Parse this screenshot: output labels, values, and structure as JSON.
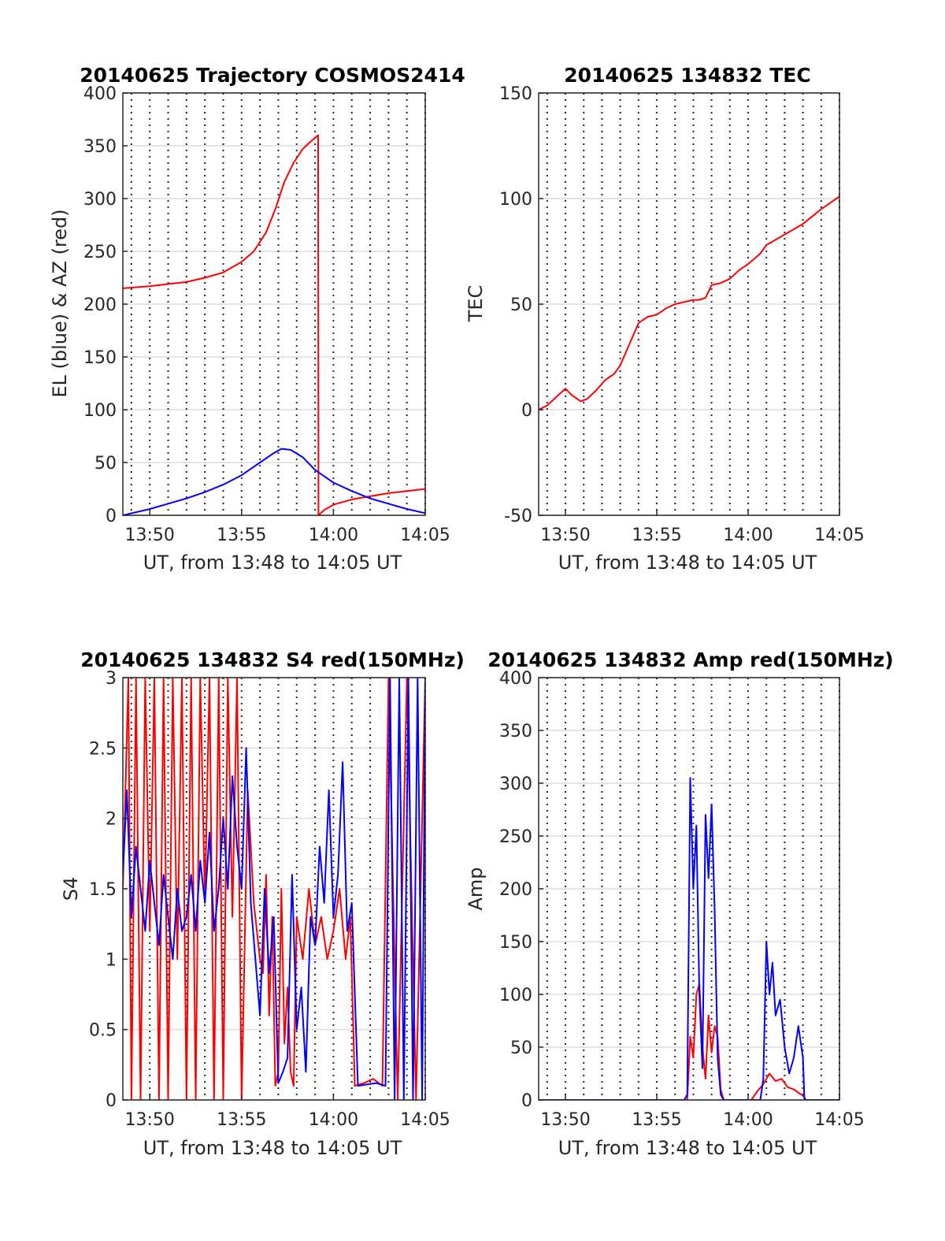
{
  "colors": {
    "red_series": "#ff0000",
    "blue_series": "#0000ff",
    "axes": "#262626",
    "hgrid": "#dcdcdc",
    "vgrid": "#262626",
    "background": "#ffffff"
  },
  "chart_data": [
    {
      "type": "line",
      "title": "20140625 Trajectory COSMOS2414",
      "xlabel": "UT, from 13:48 to 14:05 UT",
      "ylabel": "EL (blue) & AZ (red)",
      "xlim": [
        "13:48:32",
        "14:05:00"
      ],
      "ylim": [
        0,
        400
      ],
      "xticks": [
        "13:50",
        "13:55",
        "14:00",
        "14:05"
      ],
      "yticks": [
        "0",
        "50",
        "100",
        "150",
        "200",
        "250",
        "300",
        "350",
        "400"
      ],
      "grid": "horizontal solid, vertical dotted each minute",
      "series": [
        {
          "color": "red",
          "label": "AZ",
          "x": [
            "13:48:32",
            "13:50:00",
            "13:51:00",
            "13:52:00",
            "13:53:00",
            "13:54:00",
            "13:55:00",
            "13:55:40",
            "13:56:20",
            "13:56:50",
            "13:57:20",
            "13:57:50",
            "13:58:20",
            "13:58:50",
            "13:59:10",
            "13:59:11",
            "13:59:30",
            "14:00:00",
            "14:01:00",
            "14:02:00",
            "14:03:00",
            "14:04:00",
            "14:05:00"
          ],
          "y": [
            215,
            217,
            219,
            221,
            225,
            230,
            240,
            250,
            268,
            290,
            316,
            334,
            347,
            355,
            360,
            0,
            5,
            10,
            15,
            18,
            21,
            23,
            25
          ]
        },
        {
          "color": "blue",
          "label": "EL",
          "x": [
            "13:48:32",
            "13:50:00",
            "13:51:00",
            "13:52:00",
            "13:53:00",
            "13:54:00",
            "13:55:00",
            "13:56:00",
            "13:56:40",
            "13:57:10",
            "13:57:40",
            "13:58:20",
            "13:59:00",
            "14:00:00",
            "14:01:00",
            "14:02:00",
            "14:03:00",
            "14:04:00",
            "14:05:00"
          ],
          "y": [
            0,
            6,
            11,
            16,
            22,
            29,
            38,
            50,
            58,
            63,
            62,
            55,
            43,
            31,
            23,
            16,
            11,
            6,
            2
          ]
        }
      ]
    },
    {
      "type": "line",
      "title": "20140625 134832 TEC",
      "xlabel": "UT, from 13:48 to 14:05 UT",
      "ylabel": "TEC",
      "xlim": [
        "13:48:32",
        "14:05:00"
      ],
      "ylim": [
        -50,
        150
      ],
      "xticks": [
        "13:50",
        "13:55",
        "14:00",
        "14:05"
      ],
      "yticks": [
        "-50",
        "0",
        "50",
        "100",
        "150"
      ],
      "grid": "horizontal solid, vertical dotted each minute",
      "series": [
        {
          "color": "red",
          "label": "TEC",
          "x": [
            "13:48:32",
            "13:49:00",
            "13:49:30",
            "13:50:00",
            "13:50:20",
            "13:50:50",
            "13:51:10",
            "13:51:40",
            "13:52:10",
            "13:52:40",
            "13:53:00",
            "13:53:30",
            "13:54:00",
            "13:54:30",
            "13:55:00",
            "13:55:30",
            "13:56:00",
            "13:56:30",
            "13:57:00",
            "13:57:20",
            "13:57:40",
            "13:58:00",
            "13:58:30",
            "13:59:00",
            "13:59:30",
            "14:00:00",
            "14:00:40",
            "14:01:00",
            "14:02:00",
            "14:03:00",
            "14:04:00",
            "14:05:00"
          ],
          "y": [
            0,
            2,
            6,
            10,
            7,
            4,
            5,
            9,
            14,
            17,
            21,
            31,
            41,
            44,
            45,
            48,
            50,
            51,
            52,
            52,
            53,
            59,
            60,
            62,
            66,
            69,
            74,
            78,
            83,
            88,
            95,
            101
          ]
        }
      ]
    },
    {
      "type": "line",
      "title": "20140625 134832 S4 red(150MHz)",
      "xlabel": "UT, from 13:48 to 14:05 UT",
      "ylabel": "S4",
      "xlim": [
        "13:48:32",
        "14:05:00"
      ],
      "ylim": [
        0,
        3
      ],
      "xticks": [
        "13:50",
        "13:55",
        "14:00",
        "14:05"
      ],
      "yticks": [
        "0",
        "0.5",
        "1",
        "1.5",
        "2",
        "2.5",
        "3"
      ],
      "grid": "horizontal solid, vertical dotted each minute",
      "series": [
        {
          "color": "red",
          "label": "S4 red",
          "x": [
            "13:48:32",
            "13:48:50",
            "13:49:00",
            "13:49:15",
            "13:49:30",
            "13:49:45",
            "13:50:00",
            "13:50:15",
            "13:50:30",
            "13:50:45",
            "13:51:00",
            "13:51:15",
            "13:51:30",
            "13:51:45",
            "13:52:00",
            "13:52:15",
            "13:52:30",
            "13:52:45",
            "13:53:00",
            "13:53:15",
            "13:53:30",
            "13:53:45",
            "13:54:00",
            "13:54:15",
            "13:54:30",
            "13:54:45",
            "13:55:00",
            "13:55:20",
            "13:55:40",
            "13:56:00",
            "13:56:10",
            "13:56:20",
            "13:56:30",
            "13:56:40",
            "13:56:50",
            "13:57:00",
            "13:57:10",
            "13:57:20",
            "13:57:30",
            "13:57:40",
            "13:57:50",
            "13:58:00",
            "13:58:20",
            "13:58:40",
            "13:59:00",
            "13:59:20",
            "13:59:40",
            "14:00:00",
            "14:00:20",
            "14:00:40",
            "14:00:55",
            "14:01:10",
            "14:01:40",
            "14:02:10",
            "14:02:40",
            "14:03:00",
            "14:03:30",
            "14:04:00",
            "14:04:30",
            "14:05:00"
          ],
          "y": [
            1.5,
            3.0,
            0.0,
            3.0,
            0.0,
            3.0,
            1.2,
            3.0,
            0.0,
            3.0,
            0.0,
            3.0,
            1.0,
            3.0,
            0.0,
            3.0,
            0.0,
            3.0,
            1.4,
            3.0,
            0.0,
            3.0,
            0.0,
            3.0,
            1.3,
            3.0,
            0.0,
            2.2,
            1.4,
            1.0,
            0.9,
            1.6,
            0.6,
            1.3,
            0.1,
            0.2,
            1.5,
            0.4,
            0.8,
            0.2,
            0.1,
            1.3,
            1.0,
            1.5,
            1.1,
            1.3,
            1.0,
            1.2,
            1.5,
            1.0,
            1.3,
            0.1,
            0.12,
            0.15,
            0.1,
            3.0,
            0.0,
            3.0,
            0.0,
            3.0
          ]
        },
        {
          "color": "blue",
          "label": "S4 blue",
          "x": [
            "13:48:32",
            "13:48:45",
            "13:49:00",
            "13:49:15",
            "13:49:30",
            "13:49:45",
            "13:50:00",
            "13:50:15",
            "13:50:30",
            "13:50:45",
            "13:51:00",
            "13:51:15",
            "13:51:30",
            "13:51:45",
            "13:52:00",
            "13:52:15",
            "13:52:30",
            "13:52:45",
            "13:53:00",
            "13:53:15",
            "13:53:30",
            "13:53:45",
            "13:54:00",
            "13:54:15",
            "13:54:30",
            "13:54:45",
            "13:55:00",
            "13:55:15",
            "13:55:30",
            "13:55:45",
            "13:56:00",
            "13:56:15",
            "13:56:30",
            "13:56:45",
            "13:57:00",
            "13:57:15",
            "13:57:30",
            "13:57:45",
            "13:58:00",
            "13:58:15",
            "13:58:30",
            "13:58:45",
            "13:59:00",
            "13:59:15",
            "13:59:30",
            "13:59:45",
            "14:00:00",
            "14:00:15",
            "14:00:30",
            "14:00:45",
            "14:01:00",
            "14:01:20",
            "14:01:50",
            "14:02:20",
            "14:02:50",
            "14:03:05",
            "14:03:20",
            "14:03:35",
            "14:03:50",
            "14:04:05",
            "14:04:20",
            "14:04:35",
            "14:04:50",
            "14:05:00"
          ],
          "y": [
            1.6,
            2.2,
            1.3,
            1.8,
            1.5,
            1.2,
            1.7,
            1.4,
            1.1,
            1.6,
            1.3,
            1.0,
            1.5,
            1.2,
            1.3,
            1.6,
            1.2,
            1.7,
            1.4,
            1.9,
            1.2,
            1.5,
            2.0,
            1.5,
            2.3,
            1.8,
            1.5,
            2.5,
            1.4,
            1.0,
            0.6,
            1.5,
            0.9,
            1.3,
            0.12,
            0.2,
            0.3,
            1.6,
            0.5,
            0.8,
            0.2,
            1.3,
            1.1,
            1.8,
            1.4,
            2.2,
            1.3,
            1.6,
            2.4,
            1.2,
            1.4,
            0.1,
            0.11,
            0.12,
            0.1,
            3.0,
            0.0,
            3.0,
            0.0,
            3.0,
            0.0,
            3.0,
            0.0,
            3.0
          ]
        }
      ]
    },
    {
      "type": "line",
      "title": "20140625 134832 Amp red(150MHz)",
      "xlabel": "UT, from 13:48 to 14:05 UT",
      "ylabel": "Amp",
      "xlim": [
        "13:48:32",
        "14:05:00"
      ],
      "ylim": [
        0,
        400
      ],
      "xticks": [
        "13:50",
        "13:55",
        "14:00",
        "14:05"
      ],
      "yticks": [
        "0",
        "50",
        "100",
        "150",
        "200",
        "250",
        "300",
        "350",
        "400"
      ],
      "grid": "horizontal solid, vertical dotted each minute",
      "series": [
        {
          "color": "red",
          "label": "Amp red",
          "x": [
            "13:48:32",
            "13:56:40",
            "13:56:50",
            "13:57:00",
            "13:57:10",
            "13:57:20",
            "13:57:30",
            "13:57:40",
            "13:57:50",
            "13:58:00",
            "13:58:10",
            "13:58:20",
            "13:58:30",
            "13:58:40",
            "14:00:10",
            "14:00:30",
            "14:00:50",
            "14:01:10",
            "14:01:30",
            "14:01:50",
            "14:02:10",
            "14:02:30",
            "14:02:50",
            "14:03:00",
            "14:03:10",
            "14:05:00"
          ],
          "y": [
            0,
            0,
            60,
            40,
            100,
            110,
            50,
            20,
            80,
            45,
            70,
            60,
            10,
            0,
            0,
            8,
            15,
            25,
            18,
            20,
            12,
            10,
            6,
            4,
            0,
            0
          ]
        },
        {
          "color": "blue",
          "label": "Amp blue",
          "x": [
            "13:48:32",
            "13:56:30",
            "13:56:40",
            "13:56:50",
            "13:57:00",
            "13:57:10",
            "13:57:20",
            "13:57:30",
            "13:57:40",
            "13:57:50",
            "13:58:00",
            "13:58:10",
            "13:58:20",
            "13:58:30",
            "13:58:40",
            "14:00:40",
            "14:00:50",
            "14:01:00",
            "14:01:10",
            "14:01:20",
            "14:01:30",
            "14:01:45",
            "14:02:00",
            "14:02:15",
            "14:02:30",
            "14:02:45",
            "14:03:00",
            "14:03:05",
            "14:05:00"
          ],
          "y": [
            0,
            0,
            5,
            305,
            200,
            260,
            100,
            30,
            270,
            210,
            280,
            180,
            40,
            5,
            0,
            0,
            20,
            150,
            100,
            130,
            80,
            95,
            50,
            25,
            40,
            70,
            40,
            0,
            0
          ]
        }
      ]
    }
  ]
}
